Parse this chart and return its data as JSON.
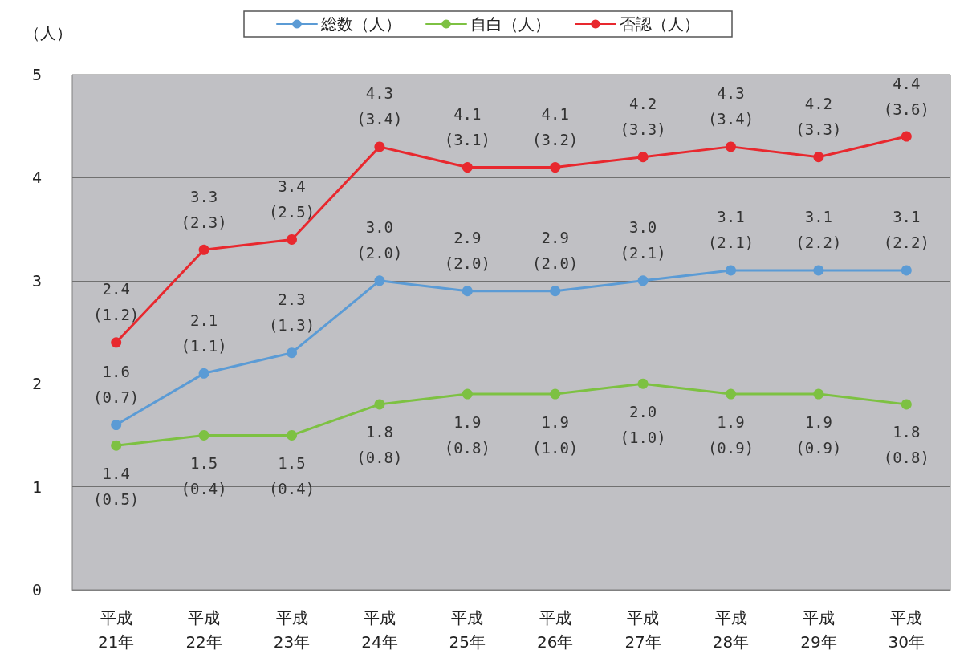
{
  "chart_data": {
    "type": "line",
    "ylabel": "（人）",
    "categories": [
      "平成\n21年",
      "平成\n22年",
      "平成\n23年",
      "平成\n24年",
      "平成\n25年",
      "平成\n26年",
      "平成\n27年",
      "平成\n28年",
      "平成\n29年",
      "平成\n30年"
    ],
    "series": [
      {
        "name": "総数（人）",
        "color": "#5b9bd5",
        "values": [
          1.6,
          2.1,
          2.3,
          3.0,
          2.9,
          2.9,
          3.0,
          3.1,
          3.1,
          3.1
        ],
        "value_labels": [
          "1.6\n(0.7)",
          "2.1\n(1.1)",
          "2.3\n(1.3)",
          "3.0\n(2.0)",
          "2.9\n(2.0)",
          "2.9\n(2.0)",
          "3.0\n(2.1)",
          "3.1\n(2.1)",
          "3.1\n(2.2)",
          "3.1\n(2.2)"
        ]
      },
      {
        "name": "自白（人）",
        "color": "#7dc142",
        "values": [
          1.4,
          1.5,
          1.5,
          1.8,
          1.9,
          1.9,
          2.0,
          1.9,
          1.9,
          1.8
        ],
        "value_labels": [
          "1.4\n(0.5)",
          "1.5\n(0.4)",
          "1.5\n(0.4)",
          "1.8\n(0.8)",
          "1.9\n(0.8)",
          "1.9\n(1.0)",
          "2.0\n(1.0)",
          "1.9\n(0.9)",
          "1.9\n(0.9)",
          "1.8\n(0.8)"
        ]
      },
      {
        "name": "否認（人）",
        "color": "#e8282e",
        "values": [
          2.4,
          3.3,
          3.4,
          4.3,
          4.1,
          4.1,
          4.2,
          4.3,
          4.2,
          4.4
        ],
        "value_labels": [
          "2.4\n(1.2)",
          "3.3\n(2.3)",
          "3.4\n(2.5)",
          "4.3\n(3.4)",
          "4.1\n(3.1)",
          "4.1\n(3.2)",
          "4.2\n(3.3)",
          "4.3\n(3.4)",
          "4.2\n(3.3)",
          "4.4\n(3.6)"
        ]
      }
    ],
    "ylim": [
      0,
      5
    ],
    "yticks": [
      0,
      1,
      2,
      3,
      4,
      5
    ],
    "grid": "y",
    "legend": "top",
    "marker": "circle",
    "line_style": "solid"
  }
}
